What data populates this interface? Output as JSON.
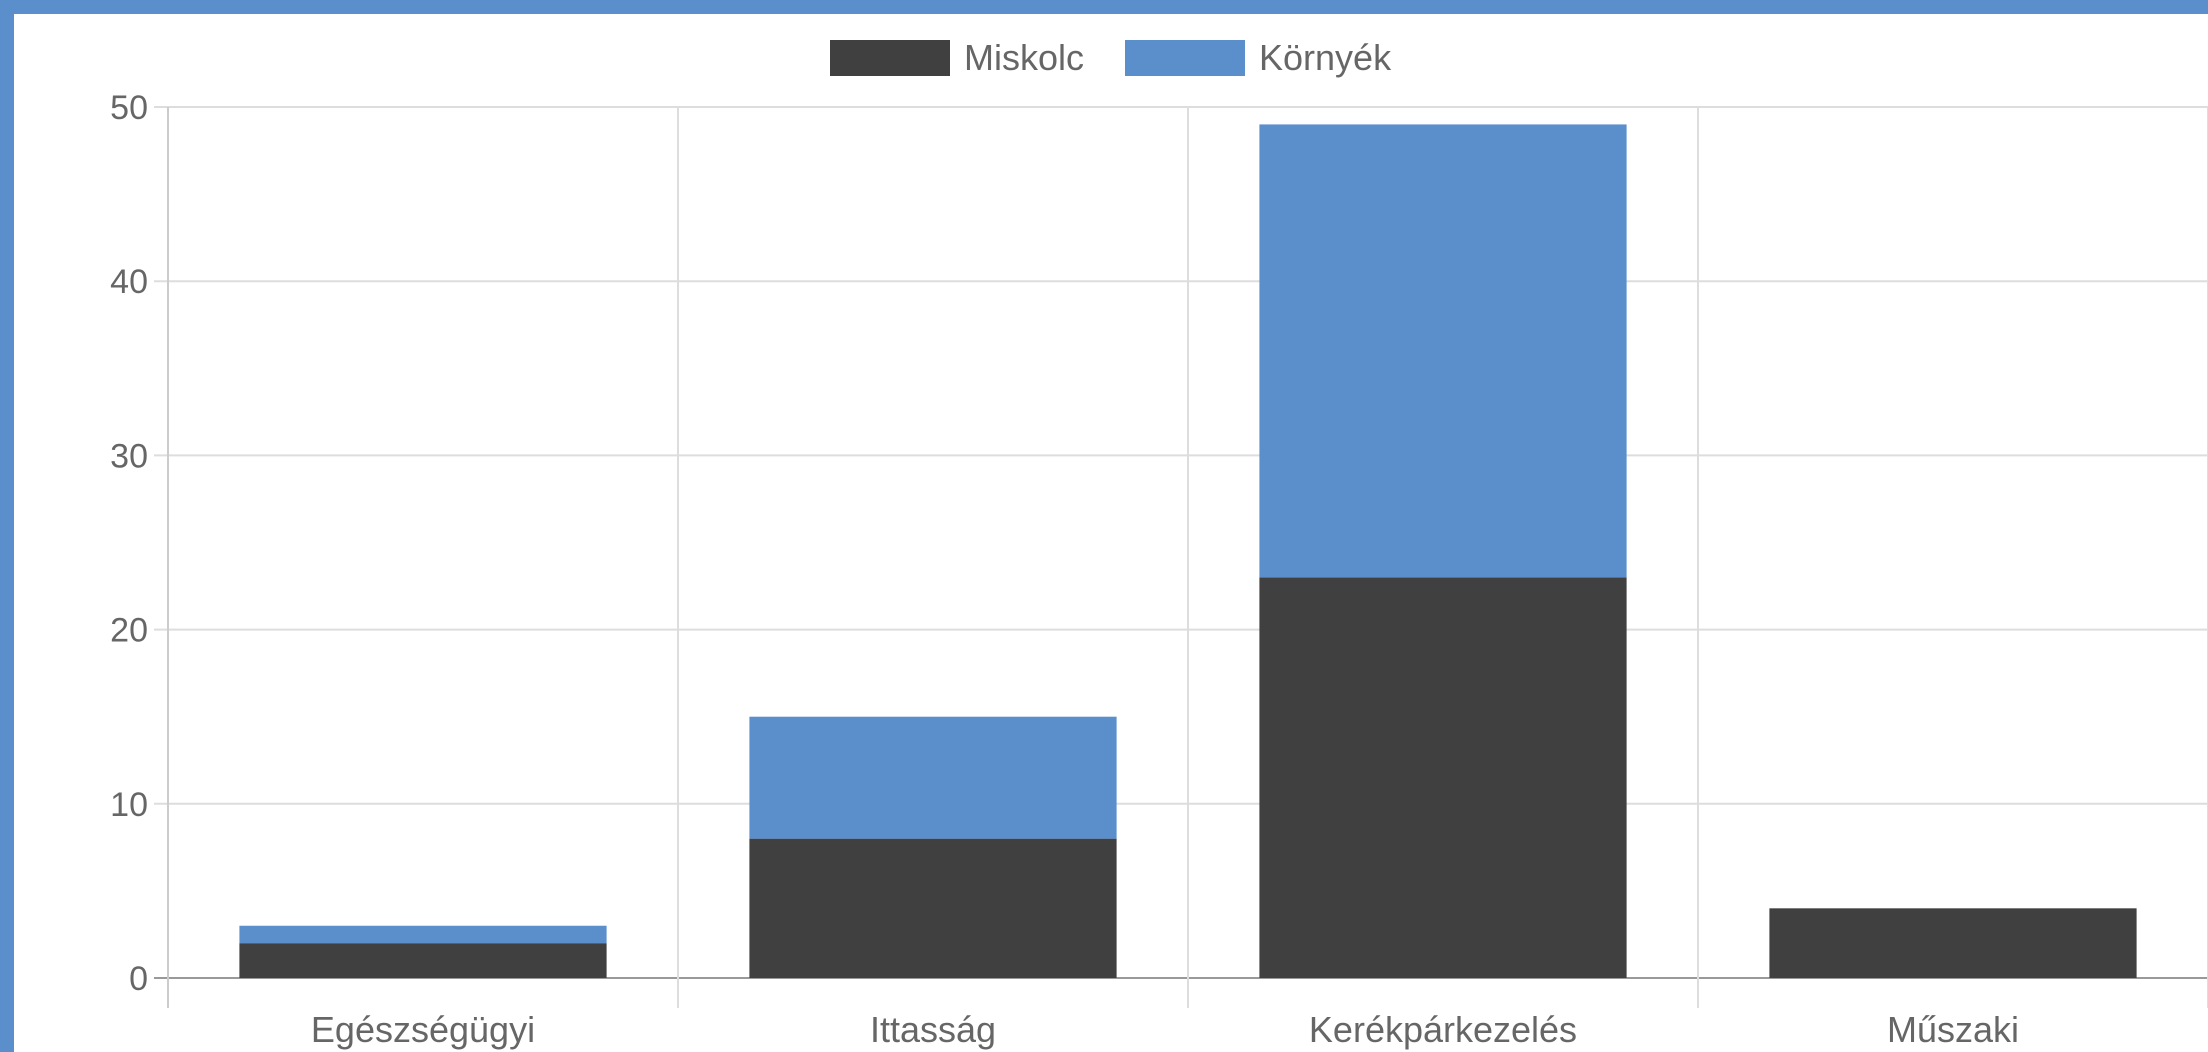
{
  "chart_data": {
    "type": "bar",
    "stacked": true,
    "categories": [
      "Egészségügyi",
      "Ittasság",
      "Kerékpárkezelés",
      "Műszaki"
    ],
    "series": [
      {
        "name": "Miskolc",
        "color": "#404040",
        "values": [
          2,
          8,
          23,
          4
        ]
      },
      {
        "name": "Környék",
        "color": "#5b8fcb",
        "values": [
          1,
          7,
          26,
          0
        ]
      }
    ],
    "ylim": [
      0,
      50
    ],
    "yticks": [
      0,
      10,
      20,
      30,
      40,
      50
    ],
    "grid": true,
    "legend": "top-center"
  }
}
